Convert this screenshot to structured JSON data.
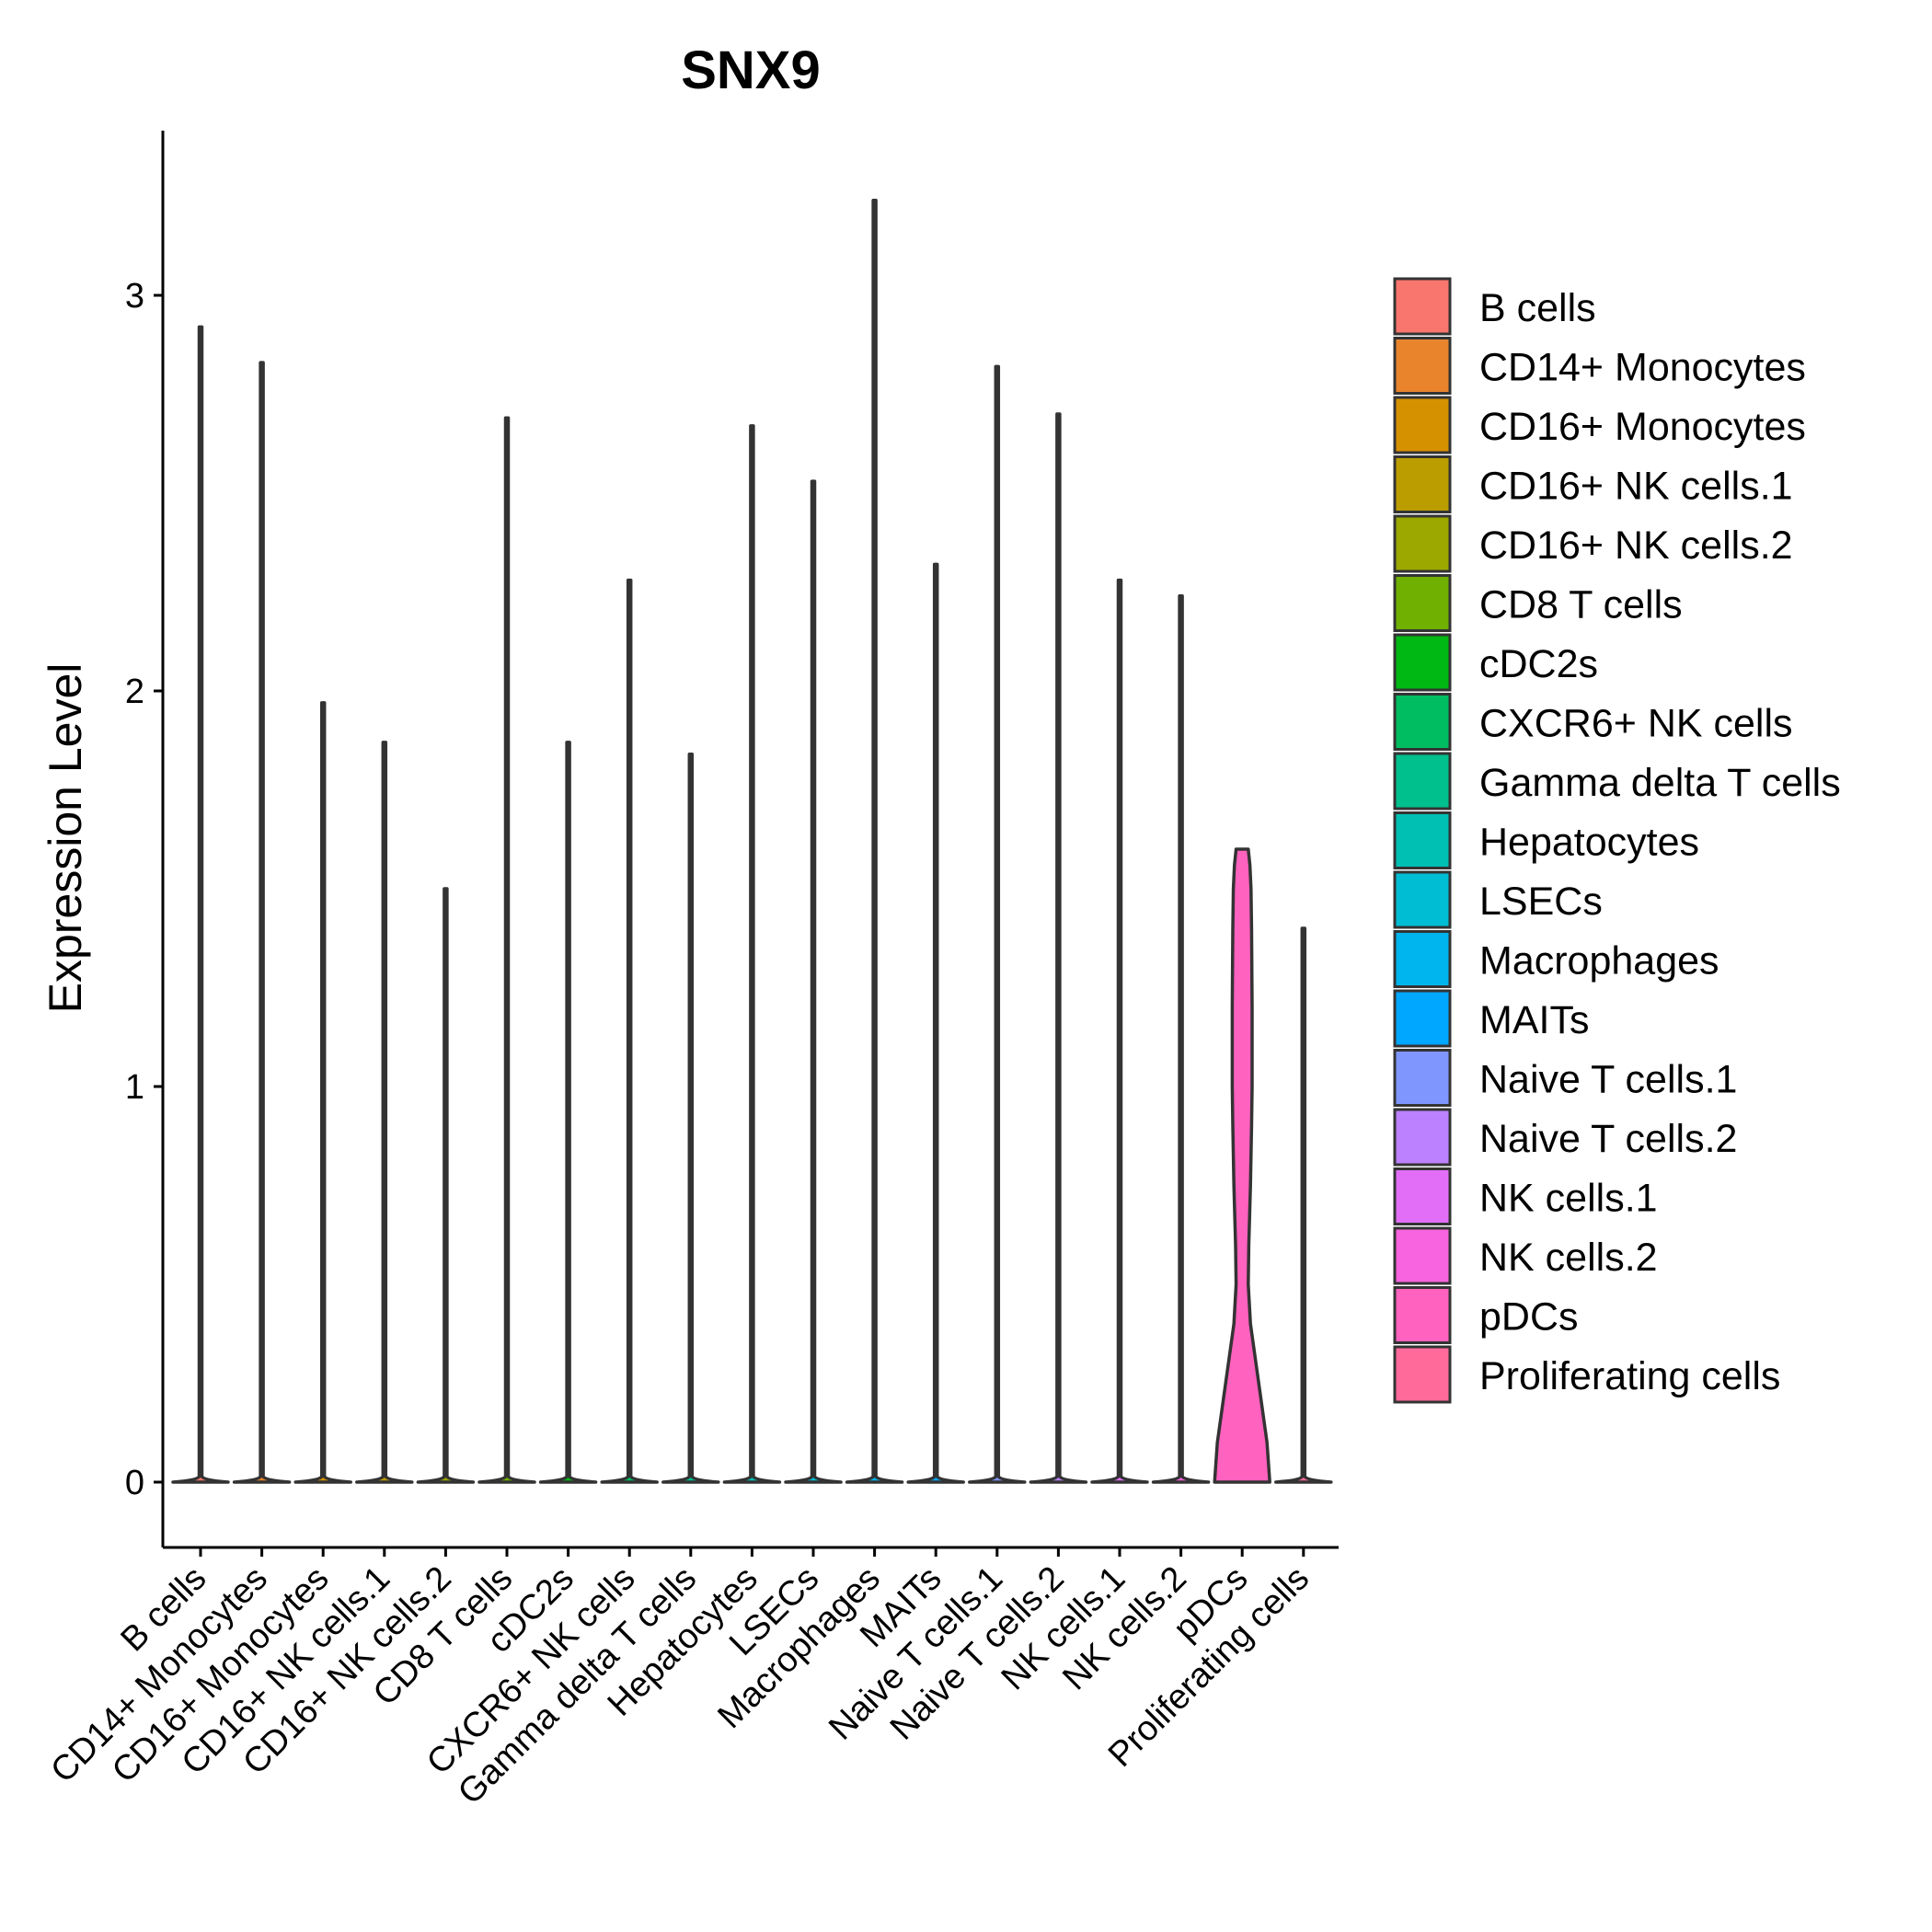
{
  "chart_data": {
    "type": "violin",
    "title": "SNX9",
    "xlabel": "",
    "ylabel": "Expression Level",
    "ylim": [
      -0.17,
      3.42
    ],
    "yticks": [
      0,
      1,
      2,
      3
    ],
    "ytick_labels": [
      "0",
      "1",
      "2",
      "3"
    ],
    "grid": false,
    "legend_position": "right",
    "categories": [
      "B cells",
      "CD14+ Monocytes",
      "CD16+ Monocytes",
      "CD16+ NK cells.1",
      "CD16+ NK cells.2",
      "CD8 T cells",
      "cDC2s",
      "CXCR6+ NK cells",
      "Gamma delta T cells",
      "Hepatocytes",
      "LSECs",
      "Macrophages",
      "MAITs",
      "Naive T cells.1",
      "Naive T cells.2",
      "NK cells.1",
      "NK cells.2",
      "pDCs",
      "Proliferating cells"
    ],
    "max_values": [
      2.92,
      2.83,
      1.97,
      1.87,
      1.5,
      2.69,
      1.87,
      2.28,
      1.84,
      2.67,
      2.53,
      3.24,
      2.32,
      2.82,
      2.7,
      2.28,
      2.24,
      1.6,
      1.4
    ],
    "colors": [
      "#F8766D",
      "#E9842C",
      "#D69100",
      "#BC9D00",
      "#9CA700",
      "#6FB000",
      "#00B813",
      "#00BD61",
      "#00C08E",
      "#00C0B4",
      "#00BDD4",
      "#00B5EE",
      "#00A7FF",
      "#7F96FF",
      "#BC81FF",
      "#E26EF7",
      "#F863DF",
      "#FF62BF",
      "#FF6A9A"
    ],
    "pdc_density_profile": [
      [
        0,
        1.0
      ],
      [
        0.1,
        0.9
      ],
      [
        0.2,
        0.7
      ],
      [
        0.3,
        0.5
      ],
      [
        0.4,
        0.3
      ],
      [
        0.5,
        0.22
      ],
      [
        0.6,
        0.24
      ],
      [
        0.75,
        0.3
      ],
      [
        0.9,
        0.34
      ],
      [
        1.0,
        0.36
      ],
      [
        1.2,
        0.36
      ],
      [
        1.4,
        0.34
      ],
      [
        1.5,
        0.32
      ],
      [
        1.56,
        0.28
      ],
      [
        1.6,
        0.22
      ]
    ]
  }
}
